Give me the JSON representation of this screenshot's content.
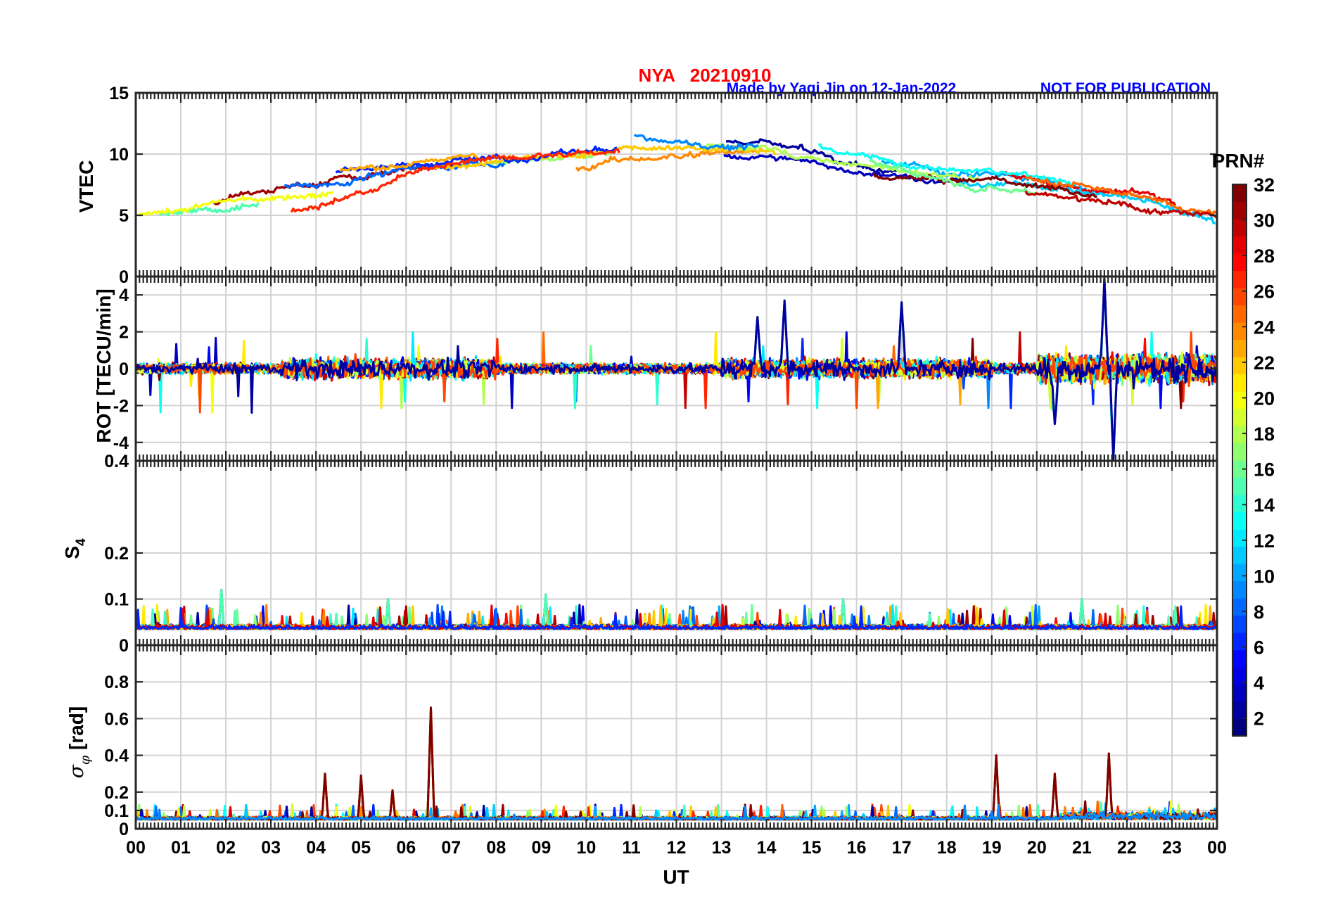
{
  "header": {
    "station_date": "NYA   20210910",
    "credit": "Made by Yaqi Jin on 12-Jan-2022",
    "notice": "NOT FOR PUBLICATION"
  },
  "colors": {
    "title": "#ff0000",
    "credit": "#0000ff",
    "grid": "#d2d2d2",
    "axis": "#262626"
  },
  "chart_data": [
    {
      "type": "line",
      "panel": "vtec",
      "ylabel": "VTEC",
      "ylim": [
        0,
        15
      ],
      "yticks": [
        "0",
        "5",
        "10",
        "15"
      ],
      "xlim": [
        0,
        24
      ],
      "grid": true,
      "baseline": [
        {
          "x": 0,
          "y": 5
        },
        {
          "x": 2,
          "y": 6
        },
        {
          "x": 4,
          "y": 7
        },
        {
          "x": 6,
          "y": 8.5
        },
        {
          "x": 8,
          "y": 9.5
        },
        {
          "x": 10,
          "y": 10
        },
        {
          "x": 12,
          "y": 10.5
        },
        {
          "x": 14,
          "y": 10.5
        },
        {
          "x": 16,
          "y": 9
        },
        {
          "x": 18,
          "y": 8
        },
        {
          "x": 20,
          "y": 7.5
        },
        {
          "x": 22,
          "y": 6.5
        },
        {
          "x": 24,
          "y": 5
        }
      ]
    },
    {
      "type": "line",
      "panel": "rot",
      "ylabel": "ROT [TECU/min]",
      "ylim": [
        -5,
        5
      ],
      "yticks": [
        "-4",
        "-2",
        "0",
        "2",
        "4"
      ],
      "xlim": [
        0,
        24
      ],
      "grid": true,
      "annotated_extremes": [
        {
          "x": 21.5,
          "y": 4.9
        },
        {
          "x": 21.7,
          "y": -5.0
        },
        {
          "x": 14.4,
          "y": 3.7
        },
        {
          "x": 17.0,
          "y": 3.6
        },
        {
          "x": 13.8,
          "y": 2.8
        },
        {
          "x": 20.4,
          "y": -3.0
        }
      ]
    },
    {
      "type": "line",
      "panel": "s4",
      "ylabel": "S",
      "ylabel_sub": "4",
      "ylim": [
        0,
        0.4
      ],
      "yticks": [
        "0",
        "0.1",
        "0.2",
        "0.4"
      ],
      "ytick_values": [
        0,
        0.1,
        0.2,
        0.4
      ],
      "xlim": [
        0,
        24
      ],
      "grid": true,
      "annotated_extremes": [
        {
          "x": 1.9,
          "y": 0.12
        },
        {
          "x": 9.1,
          "y": 0.11
        },
        {
          "x": 5.6,
          "y": 0.1
        },
        {
          "x": 15.7,
          "y": 0.1
        },
        {
          "x": 21.0,
          "y": 0.1
        }
      ]
    },
    {
      "type": "line",
      "panel": "sigma_phi",
      "ylabel": "σ",
      "ylabel_sub": "φ",
      "ylabel_unit": " [rad]",
      "ylim": [
        0,
        1
      ],
      "yticks": [
        "0",
        "0.1",
        "0.2",
        "0.4",
        "0.6",
        "0.8"
      ],
      "ytick_values": [
        0,
        0.1,
        0.2,
        0.4,
        0.6,
        0.8
      ],
      "xlim": [
        0,
        24
      ],
      "grid": true,
      "annotated_extremes": [
        {
          "x": 6.55,
          "y": 0.66
        },
        {
          "x": 21.6,
          "y": 0.41
        },
        {
          "x": 19.1,
          "y": 0.4
        },
        {
          "x": 4.2,
          "y": 0.3
        },
        {
          "x": 5.0,
          "y": 0.29
        },
        {
          "x": 20.4,
          "y": 0.3
        },
        {
          "x": 5.7,
          "y": 0.21
        }
      ]
    }
  ],
  "x_axis": {
    "label": "UT",
    "ticks": [
      "00",
      "01",
      "02",
      "03",
      "04",
      "05",
      "06",
      "07",
      "08",
      "09",
      "10",
      "11",
      "12",
      "13",
      "14",
      "15",
      "16",
      "17",
      "18",
      "19",
      "20",
      "21",
      "22",
      "23",
      "00"
    ]
  },
  "colorbar": {
    "title": "PRN#",
    "min": 1,
    "max": 32,
    "ticks": [
      "2",
      "4",
      "6",
      "8",
      "10",
      "12",
      "14",
      "16",
      "18",
      "20",
      "22",
      "24",
      "26",
      "28",
      "30",
      "32"
    ],
    "tick_values": [
      2,
      4,
      6,
      8,
      10,
      12,
      14,
      16,
      18,
      20,
      22,
      24,
      26,
      28,
      30,
      32
    ],
    "colormap": "jet"
  }
}
